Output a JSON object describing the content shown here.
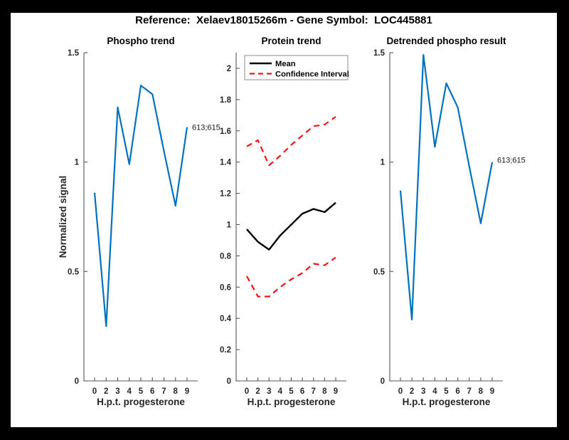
{
  "figure": {
    "title": "Reference:  Xelaev18015266m - Gene Symbol:  LOC445881",
    "frame_color": "#000000",
    "canvas_color": "#ffffff",
    "axis_color": "#575757",
    "tick_text_color": "#262626"
  },
  "chart_data": [
    {
      "type": "line",
      "title": "Phospho trend",
      "xlabel": "H.p.t. progesterone",
      "ylabel": "Normalized signal",
      "x_tick_labels": [
        "0",
        "2",
        "3",
        "4",
        "5",
        "6",
        "7",
        "8",
        "9"
      ],
      "y_tick_labels": [
        "0",
        "0.5",
        "1",
        "1.5"
      ],
      "ylim": [
        0,
        1.5
      ],
      "grid": false,
      "series": [
        {
          "name": "Phospho signal",
          "color": "#0072BD",
          "style": "solid",
          "values": [
            0.86,
            0.25,
            1.25,
            0.99,
            1.35,
            1.31,
            1.05,
            0.8,
            1.16
          ]
        }
      ],
      "annotation": {
        "text": "613;615",
        "x_index": 8,
        "y": 1.16
      }
    },
    {
      "type": "line",
      "title": "Protein trend",
      "xlabel": "H.p.t. progesterone",
      "ylabel": "",
      "x_tick_labels": [
        "0",
        "2",
        "3",
        "4",
        "5",
        "6",
        "7",
        "8",
        "9"
      ],
      "y_tick_labels": [
        "0",
        "0.2",
        "0.4",
        "0.6",
        "0.8",
        "1",
        "1.2",
        "1.4",
        "1.6",
        "1.8",
        "2"
      ],
      "ylim": [
        0,
        2.1
      ],
      "grid": false,
      "legend": {
        "position": "northwest",
        "entries": [
          {
            "label": "Mean",
            "color": "#000000",
            "style": "solid"
          },
          {
            "label": "Confidence Interval",
            "color": "#F01414",
            "style": "dashed"
          }
        ]
      },
      "series": [
        {
          "name": "Mean",
          "color": "#000000",
          "style": "solid",
          "values": [
            0.97,
            0.89,
            0.84,
            0.93,
            1.0,
            1.07,
            1.1,
            1.08,
            1.14
          ]
        },
        {
          "name": "Confidence Interval upper",
          "color": "#F01414",
          "style": "dashed",
          "values": [
            1.5,
            1.54,
            1.38,
            1.44,
            1.51,
            1.57,
            1.63,
            1.64,
            1.69
          ]
        },
        {
          "name": "Confidence Interval lower",
          "color": "#F01414",
          "style": "dashed",
          "values": [
            0.67,
            0.54,
            0.54,
            0.6,
            0.65,
            0.69,
            0.75,
            0.74,
            0.79
          ]
        }
      ]
    },
    {
      "type": "line",
      "title": "Detrended phospho result",
      "xlabel": "H.p.t. progesterone",
      "ylabel": "",
      "x_tick_labels": [
        "0",
        "2",
        "3",
        "4",
        "5",
        "6",
        "7",
        "8",
        "9"
      ],
      "y_tick_labels": [
        "0",
        "0.5",
        "1",
        "1.5"
      ],
      "ylim": [
        0,
        1.5
      ],
      "grid": false,
      "series": [
        {
          "name": "Detrended phospho signal",
          "color": "#0072BD",
          "style": "solid",
          "values": [
            0.87,
            0.28,
            1.49,
            1.07,
            1.36,
            1.25,
            0.98,
            0.72,
            1.0
          ]
        }
      ],
      "annotation": {
        "text": "613;615",
        "x_index": 8,
        "y": 1.01
      }
    }
  ]
}
